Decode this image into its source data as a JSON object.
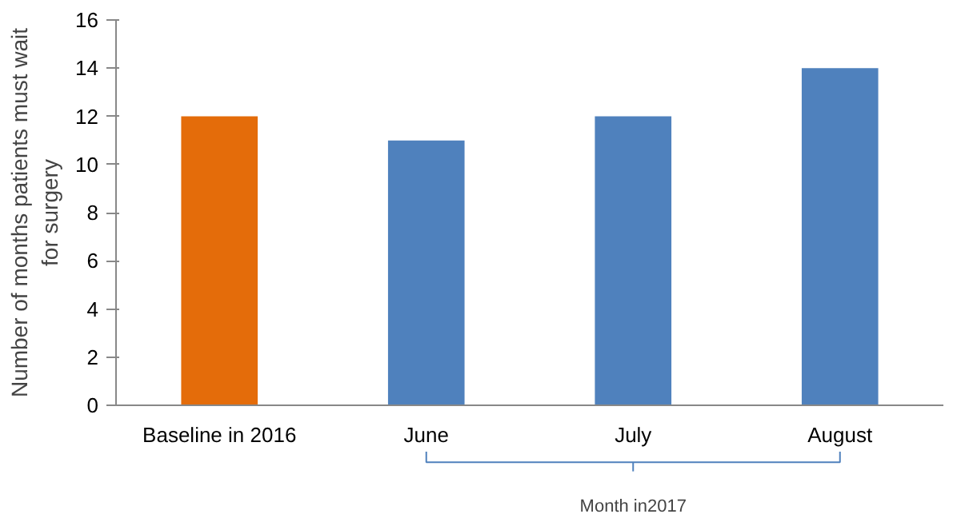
{
  "chart_data": {
    "type": "bar",
    "ylabel": "Number of months patients must wait\nfor surgery",
    "categories": [
      "Baseline in 2016",
      "June",
      "July",
      "August"
    ],
    "values": [
      12,
      11,
      12,
      14
    ],
    "colors": [
      "#e46c0a",
      "#4f81bd",
      "#4f81bd",
      "#4f81bd"
    ],
    "ylim": [
      0,
      16
    ],
    "yticks": [
      0,
      2,
      4,
      6,
      8,
      10,
      12,
      14,
      16
    ],
    "grid": false,
    "annotations": [
      "Month in2017"
    ]
  }
}
